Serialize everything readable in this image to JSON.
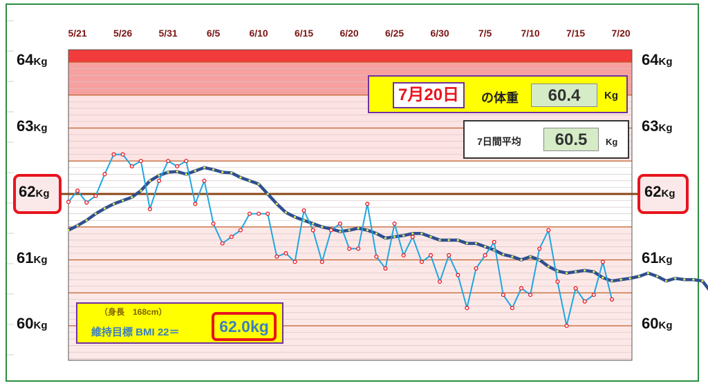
{
  "chart_data": {
    "type": "line",
    "x_tick_labels": [
      "5/21",
      "5/26",
      "5/31",
      "6/5",
      "6/10",
      "6/15",
      "6/20",
      "6/25",
      "6/30",
      "7/5",
      "7/10",
      "7/15",
      "7/20"
    ],
    "y_tick_labels": [
      {
        "value": 64,
        "num": "64",
        "unit": "Kg"
      },
      {
        "value": 63,
        "num": "63",
        "unit": "Kg"
      },
      {
        "value": 62,
        "num": "62",
        "unit": "Kg"
      },
      {
        "value": 61,
        "num": "61",
        "unit": "Kg"
      },
      {
        "value": 60,
        "num": "60",
        "unit": "Kg"
      }
    ],
    "ylim": [
      59.5,
      64.2
    ],
    "target_value": 62.0,
    "grid": true,
    "x_start": "5/20",
    "series": [
      {
        "kind": "daily",
        "color": "#1ea6e0",
        "values": [
          61.88,
          62.05,
          61.87,
          61.97,
          62.3,
          62.6,
          62.6,
          62.42,
          62.5,
          61.77,
          62.2,
          62.5,
          62.42,
          62.5,
          61.85,
          62.2,
          61.55,
          61.25,
          61.35,
          61.45,
          61.7,
          61.7,
          61.7,
          61.05,
          61.1,
          60.97,
          61.75,
          61.45,
          60.97,
          61.45,
          61.55,
          61.17,
          61.17,
          61.85,
          61.05,
          60.87,
          61.55,
          61.07,
          61.35,
          60.97,
          61.07,
          60.67,
          61.07,
          60.77,
          60.27,
          60.87,
          61.07,
          61.27,
          60.47,
          60.27,
          60.57,
          60.47,
          61.17,
          61.45,
          60.67,
          60.0,
          60.57,
          60.37,
          60.47,
          60.97,
          60.4
        ]
      },
      {
        "kind": "7-day-average",
        "color": "#2f4f8f",
        "values": [
          61.45,
          61.52,
          61.6,
          61.7,
          61.78,
          61.85,
          61.9,
          61.95,
          62.05,
          62.2,
          62.28,
          62.33,
          62.34,
          62.3,
          62.35,
          62.4,
          62.37,
          62.33,
          62.32,
          62.25,
          62.2,
          62.15,
          62.0,
          61.85,
          61.72,
          61.65,
          61.6,
          61.55,
          61.5,
          61.47,
          61.43,
          61.45,
          61.48,
          61.45,
          61.4,
          61.33,
          61.35,
          61.37,
          61.4,
          61.4,
          61.35,
          61.3,
          61.3,
          61.3,
          61.25,
          61.25,
          61.2,
          61.15,
          61.08,
          61.05,
          61.0,
          61.05,
          61.0,
          60.9,
          60.83,
          60.8,
          60.82,
          60.84,
          60.82,
          60.73,
          60.68,
          60.7,
          60.72,
          60.75,
          60.8,
          60.75,
          60.68,
          60.72,
          60.7,
          60.7,
          60.68,
          60.5
        ]
      }
    ],
    "annotations": {
      "today": {
        "date": "7月20日",
        "label": "の体重",
        "value": "60.4",
        "unit": "Kg"
      },
      "avg7": {
        "label": "7日間平均",
        "value": "60.5",
        "unit": "Kg"
      },
      "bmi": {
        "height": "（身長　168cm）",
        "label": "維持目標 BMI 22＝",
        "value": "62.0kg"
      }
    }
  }
}
